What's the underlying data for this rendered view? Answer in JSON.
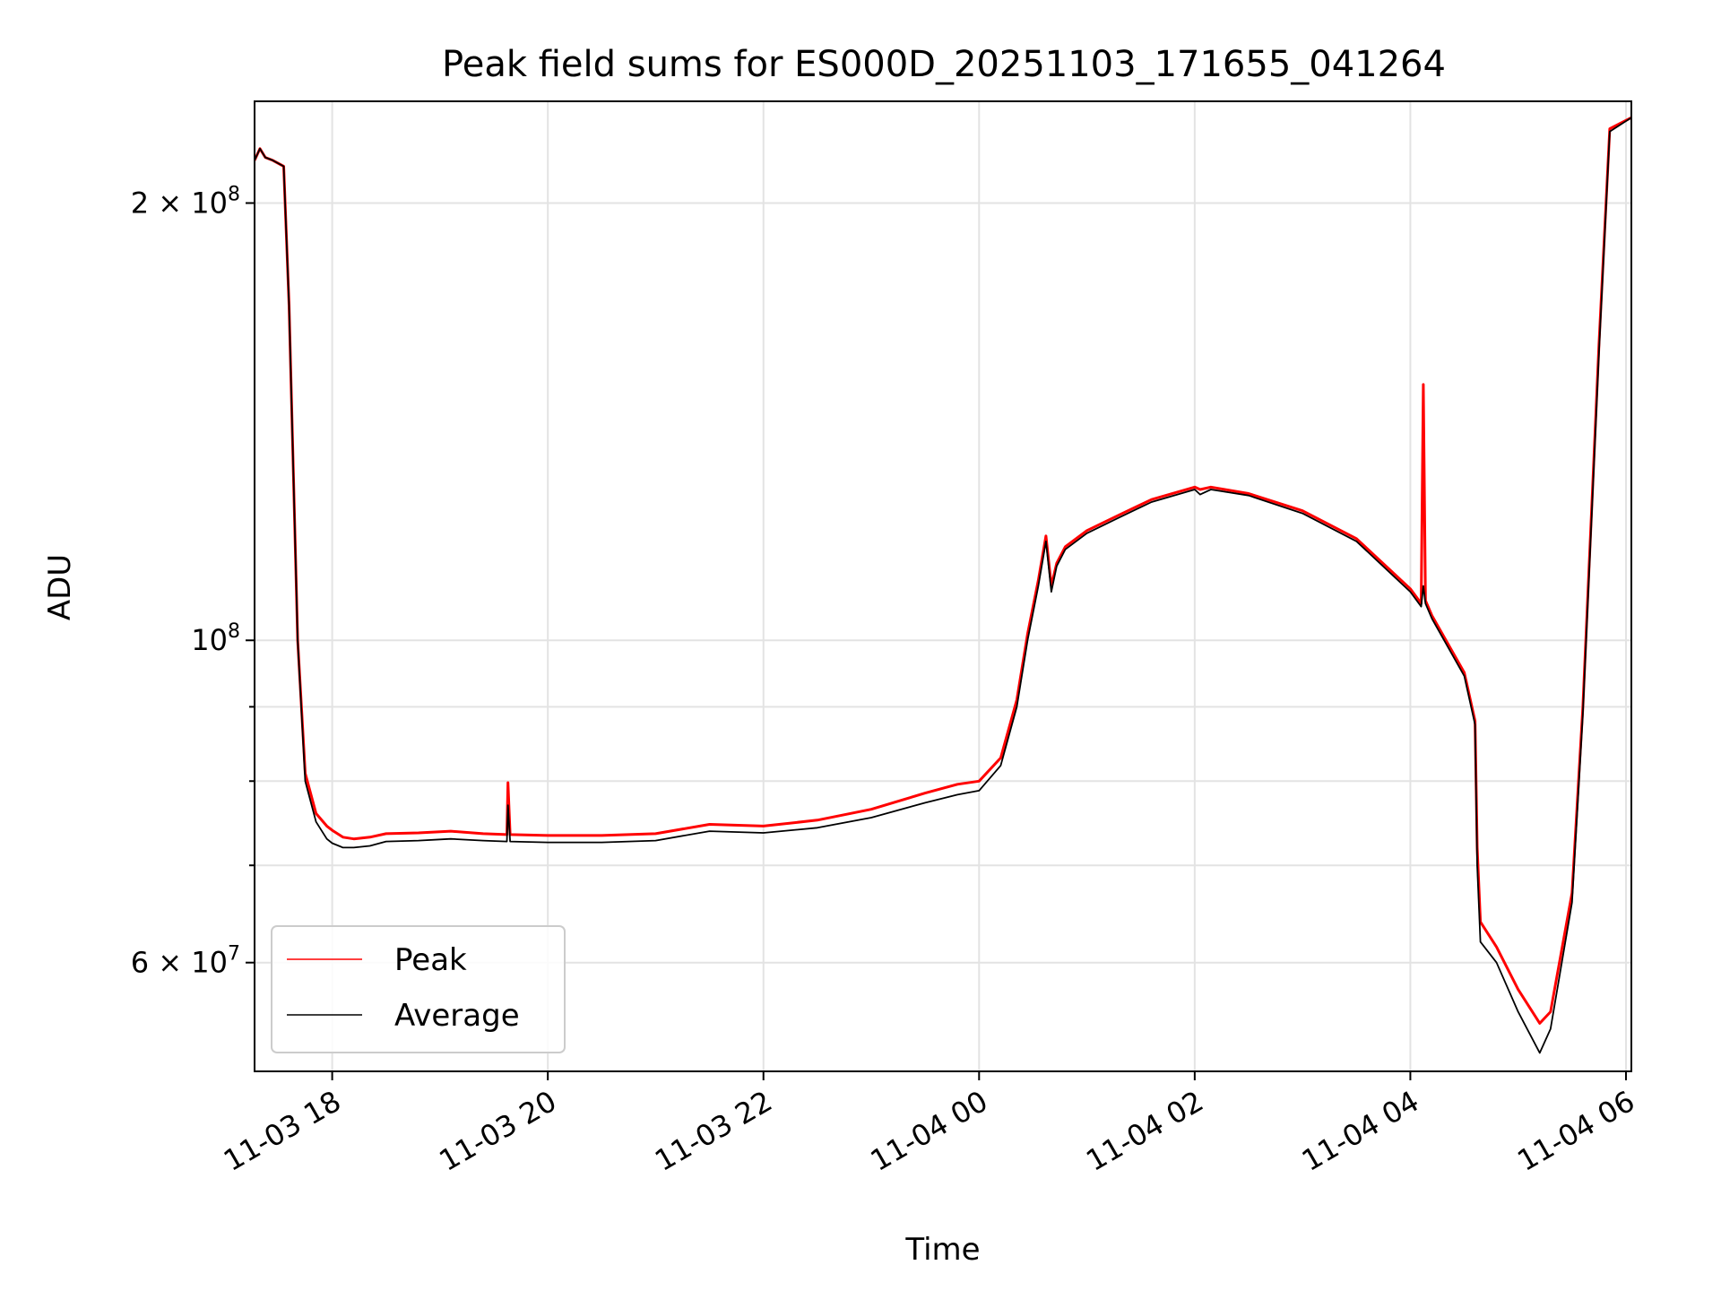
{
  "chart_data": {
    "type": "line",
    "title": "Peak field sums for ES000D_20251103_171655_041264",
    "xlabel": "Time",
    "ylabel": "ADU",
    "yscale": "log",
    "grid": true,
    "legend_location": "lower-left",
    "xlim_hours": [
      -0.72,
      12.05
    ],
    "ylim": [
      50500000,
      235000000
    ],
    "x_ticks": [
      {
        "hours": 0,
        "label": "11-03 18"
      },
      {
        "hours": 2,
        "label": "11-03 20"
      },
      {
        "hours": 4,
        "label": "11-03 22"
      },
      {
        "hours": 6,
        "label": "11-04 00"
      },
      {
        "hours": 8,
        "label": "11-04 02"
      },
      {
        "hours": 10,
        "label": "11-04 04"
      },
      {
        "hours": 12,
        "label": "11-04 06"
      }
    ],
    "y_ticks": [
      {
        "value": 60000000,
        "mantissa": "6",
        "exponent": "7"
      },
      {
        "value": 100000000,
        "mantissa": "",
        "exponent": "8"
      },
      {
        "value": 200000000,
        "mantissa": "2",
        "exponent": "8"
      }
    ],
    "y_minor_ticks": [
      70000000,
      80000000,
      90000000
    ],
    "times_hours": [
      -0.72,
      -0.67,
      -0.62,
      -0.55,
      -0.45,
      -0.4,
      -0.32,
      -0.25,
      -0.15,
      -0.05,
      0.0,
      0.1,
      0.2,
      0.35,
      0.5,
      0.8,
      1.1,
      1.4,
      1.62,
      1.63,
      1.65,
      2.0,
      2.5,
      3.0,
      3.5,
      4.0,
      4.5,
      5.0,
      5.5,
      5.8,
      6.0,
      6.2,
      6.35,
      6.45,
      6.55,
      6.62,
      6.67,
      6.72,
      6.8,
      7.0,
      7.3,
      7.6,
      8.0,
      8.05,
      8.15,
      8.5,
      9.0,
      9.5,
      10.0,
      10.1,
      10.12,
      10.14,
      10.2,
      10.5,
      10.6,
      10.62,
      10.65,
      10.8,
      11.0,
      11.2,
      11.3,
      11.5,
      11.6,
      11.75,
      11.85,
      12.05
    ],
    "series": [
      {
        "name": "Peak",
        "color": "#ff0000",
        "values": [
          214000000,
          218000000,
          215000000,
          214000000,
          212000000,
          170000000,
          100000000,
          81000000,
          76000000,
          74500000,
          74000000,
          73200000,
          73000000,
          73200000,
          73600000,
          73700000,
          73900000,
          73600000,
          73500000,
          79800000,
          73500000,
          73400000,
          73400000,
          73600000,
          74700000,
          74500000,
          75200000,
          76500000,
          78500000,
          79600000,
          80000000,
          83000000,
          91000000,
          101000000,
          110000000,
          118000000,
          109000000,
          113000000,
          116000000,
          119000000,
          122000000,
          125000000,
          127500000,
          127000000,
          127500000,
          126200000,
          122800000,
          117500000,
          108500000,
          106000000,
          150000000,
          106500000,
          104000000,
          95000000,
          88000000,
          72000000,
          64000000,
          61500000,
          57500000,
          54500000,
          55500000,
          67000000,
          90000000,
          160000000,
          225000000,
          229000000
        ]
      },
      {
        "name": "Average",
        "color": "#000000",
        "values": [
          214000000,
          218000000,
          215000000,
          214000000,
          212000000,
          170000000,
          100000000,
          80000000,
          75000000,
          73000000,
          72500000,
          72000000,
          72000000,
          72200000,
          72700000,
          72800000,
          73000000,
          72800000,
          72700000,
          77000000,
          72700000,
          72600000,
          72600000,
          72800000,
          73900000,
          73700000,
          74300000,
          75500000,
          77300000,
          78300000,
          78800000,
          82000000,
          90000000,
          100000000,
          109000000,
          117000000,
          108000000,
          112500000,
          115500000,
          118500000,
          121500000,
          124500000,
          127000000,
          126000000,
          127000000,
          125800000,
          122300000,
          117000000,
          108000000,
          105500000,
          109000000,
          106000000,
          103500000,
          94500000,
          87500000,
          70000000,
          62000000,
          60000000,
          55500000,
          52000000,
          54000000,
          66000000,
          89000000,
          158000000,
          224000000,
          229000000
        ]
      }
    ]
  }
}
